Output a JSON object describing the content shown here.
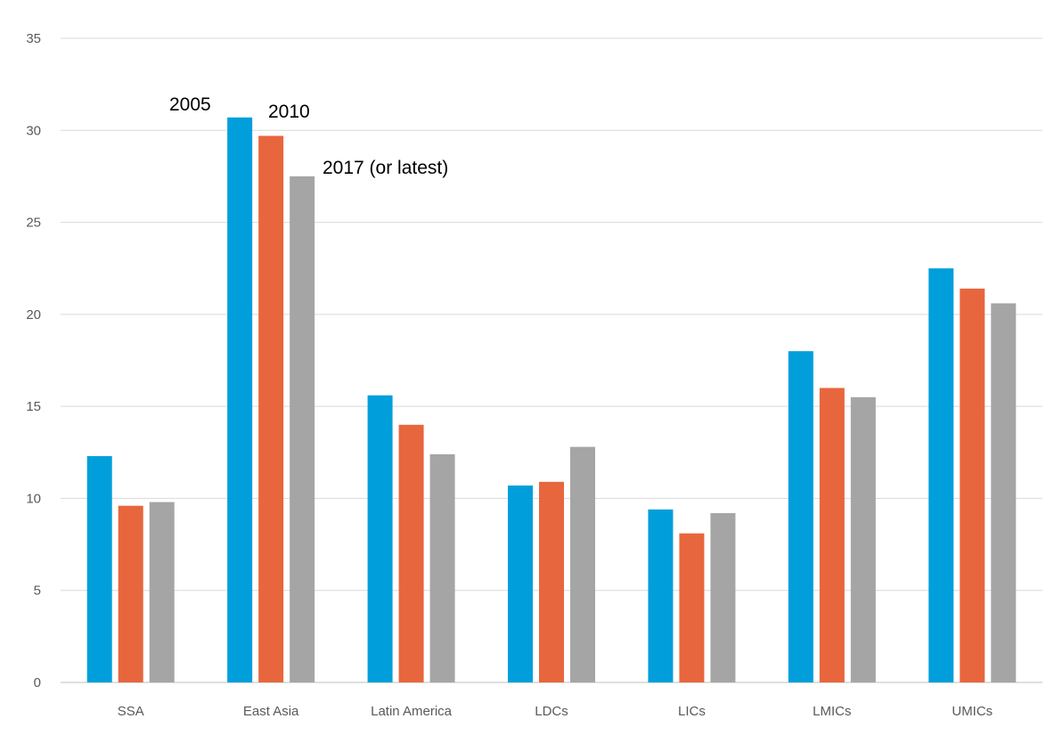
{
  "chart_data": {
    "type": "bar",
    "categories": [
      "SSA",
      "East Asia",
      "Latin America",
      "LDCs",
      "LICs",
      "LMICs",
      "UMICs"
    ],
    "series": [
      {
        "name": "2005",
        "color": "#009fdb",
        "values": [
          12.3,
          30.7,
          15.6,
          10.7,
          9.4,
          18.0,
          22.5
        ]
      },
      {
        "name": "2010",
        "color": "#e8663d",
        "values": [
          9.6,
          29.7,
          14.0,
          10.9,
          8.1,
          16.0,
          21.4
        ]
      },
      {
        "name": "2017 (or latest)",
        "color": "#a5a5a5",
        "values": [
          9.8,
          27.5,
          12.4,
          12.8,
          9.2,
          15.5,
          20.6
        ]
      }
    ],
    "y_ticks": [
      "0",
      "5",
      "10",
      "15",
      "20",
      "25",
      "30",
      "35"
    ],
    "ylim": [
      0,
      35
    ],
    "grid": true,
    "legend": "inline labels above East Asia bars"
  }
}
